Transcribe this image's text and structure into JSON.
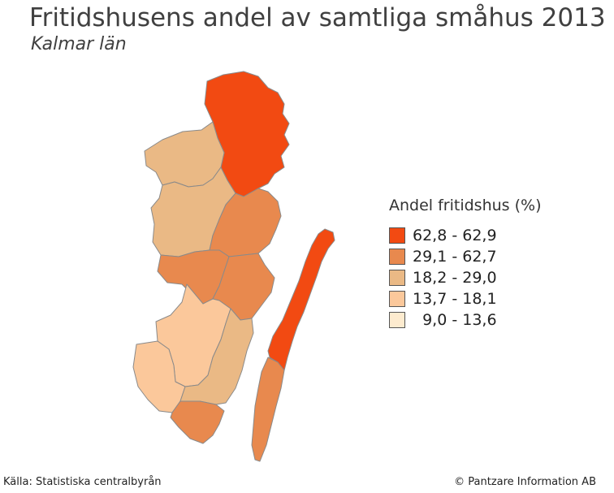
{
  "title": "Fritidshusens andel av samtliga småhus 2013",
  "subtitle": "Kalmar län",
  "legend": {
    "title": "Andel fritidshus (%)",
    "classes": [
      {
        "label": "62,8 - 62,9",
        "color": "#f24a12"
      },
      {
        "label": "29,1 - 62,7",
        "color": "#e8894e"
      },
      {
        "label": "18,2 - 29,0",
        "color": "#eab985"
      },
      {
        "label": "13,7 - 18,1",
        "color": "#fbc89b"
      },
      {
        "label": "  9,0 - 13,6",
        "color": "#fdebcf"
      }
    ]
  },
  "colors": {
    "c1": "#f24a12",
    "c2": "#e8894e",
    "c3": "#eab985",
    "c4": "#fbc89b",
    "c5": "#fdebcf"
  },
  "footer": {
    "source": "Källa: Statistiska centralbyrån",
    "copyright": "© Pantzare Information AB"
  }
}
